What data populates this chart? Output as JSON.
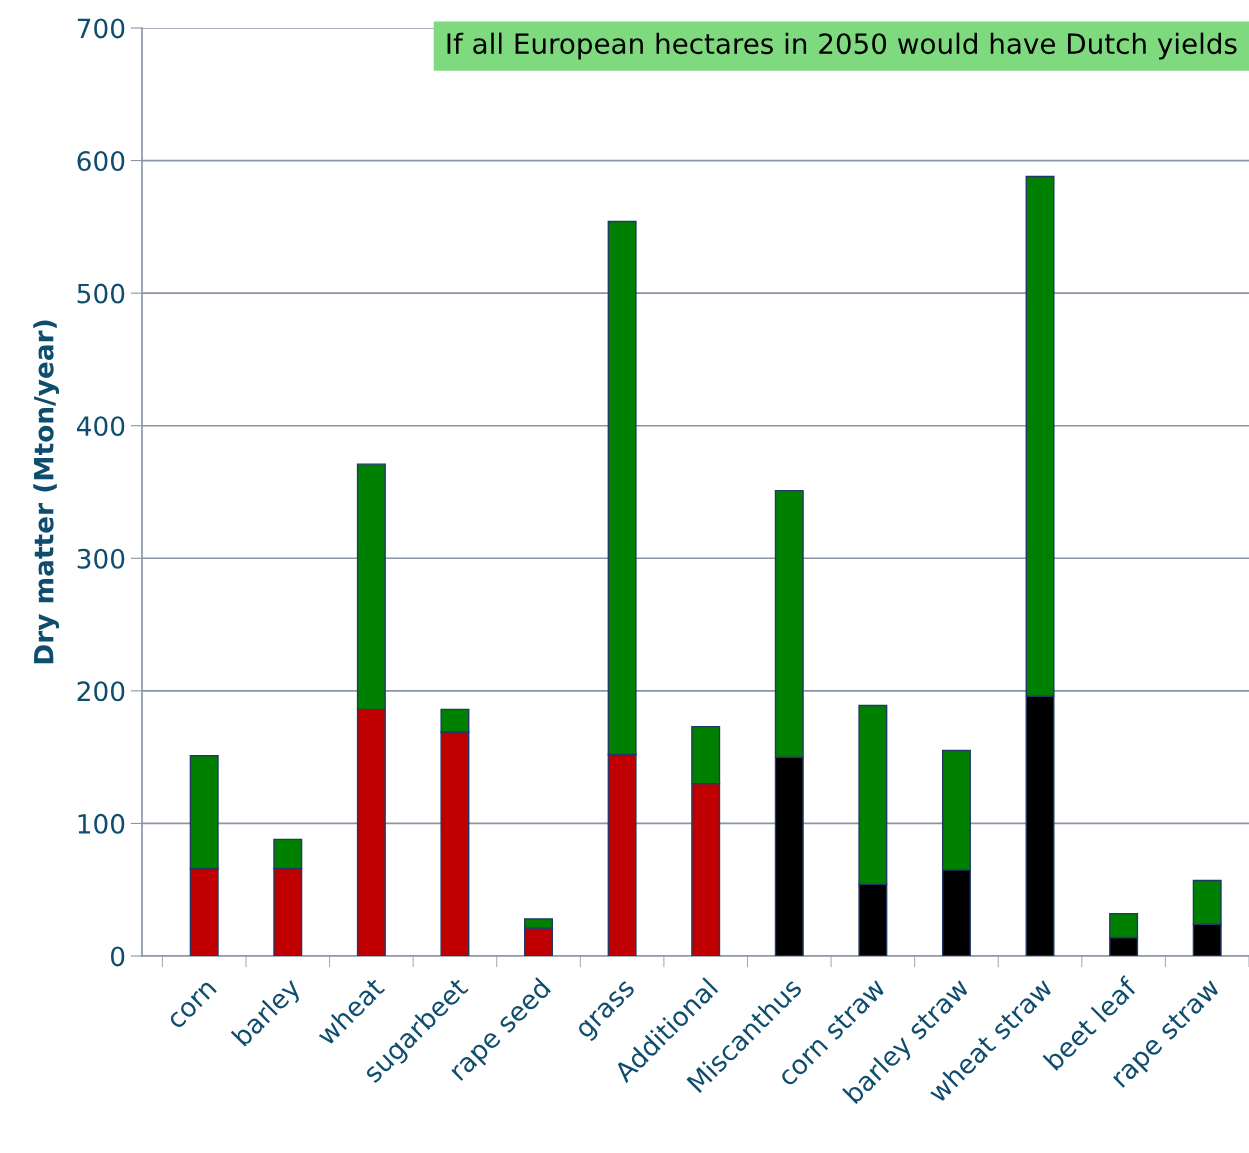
{
  "chart_data": {
    "type": "bar",
    "stacked": true,
    "title": "If all European hectares in 2050 would have Dutch yields",
    "ylabel": "Dry matter (Mton/year)",
    "categories": [
      "corn",
      "barley",
      "wheat",
      "sugarbeet",
      "rape seed",
      "grass",
      "Additional",
      "Miscanthus",
      "corn straw",
      "barley straw",
      "wheat straw",
      "beet leaf",
      "rape straw"
    ],
    "series": [
      {
        "colors": [
          "#c00000",
          "#c00000",
          "#c00000",
          "#c00000",
          "#c00000",
          "#c00000",
          "#c00000",
          "#000000",
          "#000000",
          "#000000",
          "#000000",
          "#000000",
          "#000000"
        ],
        "values": [
          66,
          66,
          186,
          169,
          21,
          152,
          130,
          150,
          54,
          65,
          196,
          14,
          24
        ]
      },
      {
        "color": "#008000",
        "values": [
          85,
          22,
          185,
          17,
          7,
          402,
          43,
          201,
          135,
          90,
          392,
          18,
          33
        ]
      }
    ],
    "ylim": [
      0,
      700
    ],
    "yticks": [
      0,
      100,
      200,
      300,
      400,
      500,
      600,
      700
    ],
    "grid": "y",
    "legend": false
  }
}
